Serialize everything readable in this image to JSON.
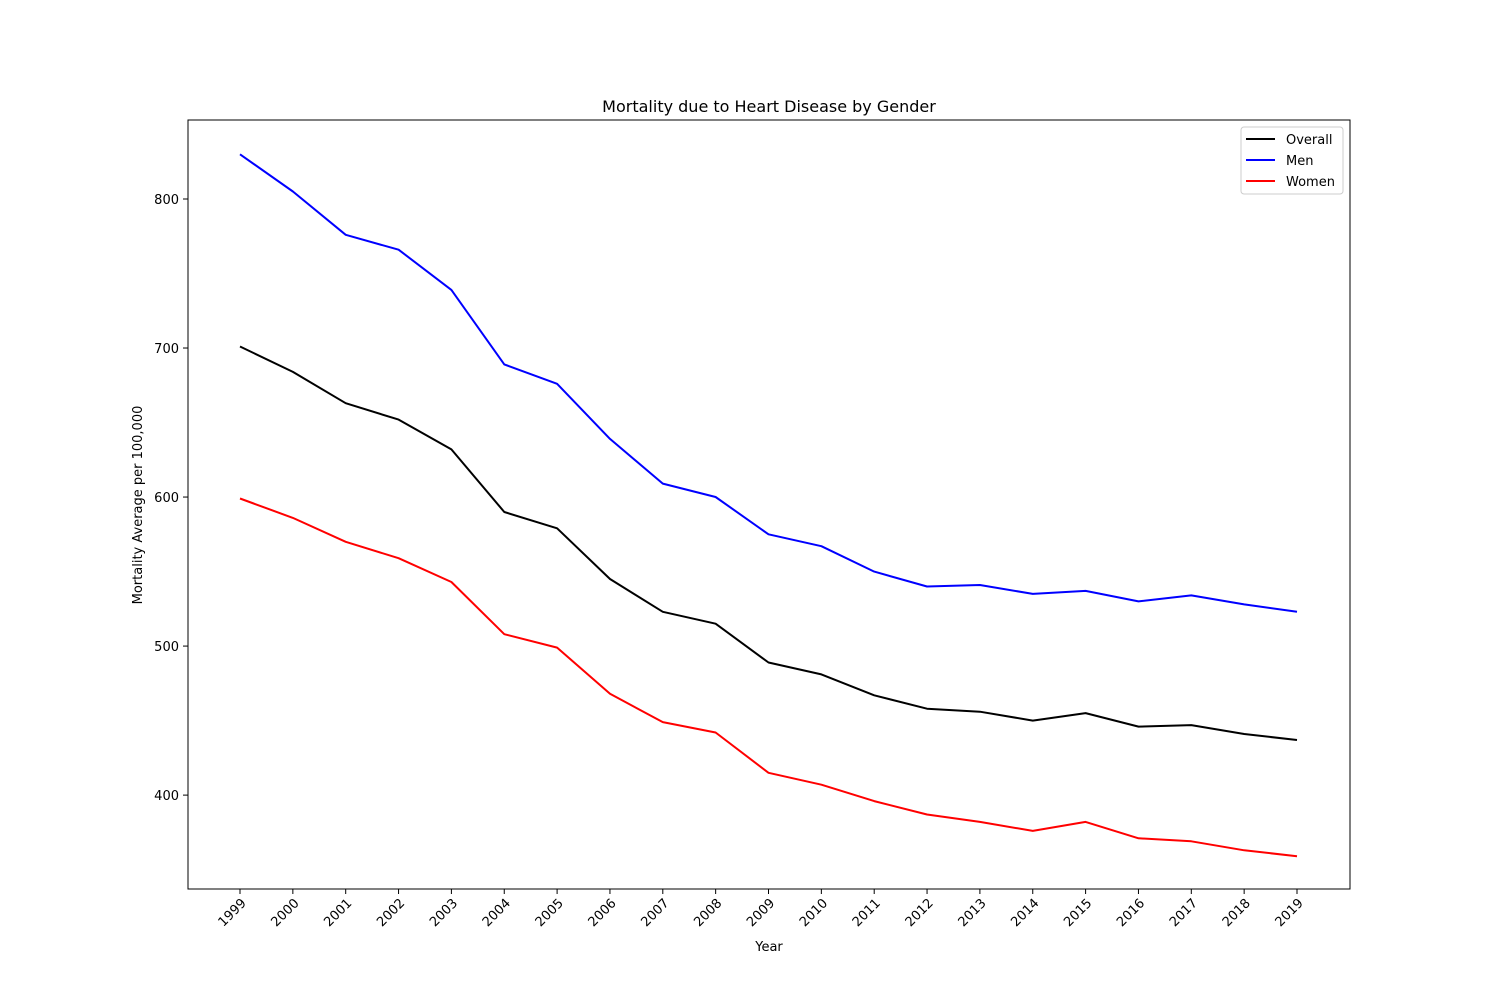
{
  "chart_data": {
    "type": "line",
    "title": "Mortality due to Heart Disease by Gender",
    "xlabel": "Year",
    "ylabel": "Mortality Average per 100,000",
    "x": [
      "1999",
      "2000",
      "2001",
      "2002",
      "2003",
      "2004",
      "2005",
      "2006",
      "2007",
      "2008",
      "2009",
      "2010",
      "2011",
      "2012",
      "2013",
      "2014",
      "2015",
      "2016",
      "2017",
      "2018",
      "2019"
    ],
    "yticks": [
      400,
      500,
      600,
      700,
      800
    ],
    "ylim": [
      337,
      853
    ],
    "grid": false,
    "legend_position": "top-right",
    "series": [
      {
        "name": "Overall",
        "color": "#000000",
        "values": [
          701,
          684,
          663,
          652,
          632,
          590,
          579,
          545,
          523,
          515,
          489,
          481,
          467,
          458,
          456,
          450,
          455,
          446,
          447,
          441,
          437
        ]
      },
      {
        "name": "Men",
        "color": "#0000ff",
        "values": [
          830,
          805,
          776,
          766,
          739,
          689,
          676,
          639,
          609,
          600,
          575,
          567,
          550,
          540,
          541,
          535,
          537,
          530,
          534,
          528,
          523
        ]
      },
      {
        "name": "Women",
        "color": "#ff0000",
        "values": [
          599,
          586,
          570,
          559,
          543,
          508,
          499,
          468,
          449,
          442,
          415,
          407,
          396,
          387,
          382,
          376,
          382,
          371,
          369,
          363,
          359
        ]
      }
    ]
  }
}
